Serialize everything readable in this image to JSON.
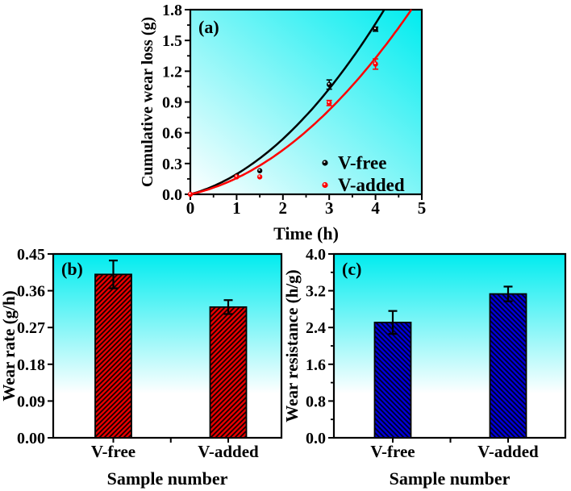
{
  "figure": {
    "description": "Wear test results figure with three panels"
  },
  "colors": {
    "background": "#ffffff",
    "gradient_top": "#00ecef",
    "gradient_bottom": "#ffffff",
    "axis": "#000000",
    "series_vfree": "#000000",
    "series_vadded": "#ff0000",
    "bar_red": "#e60000",
    "bar_red_hatch": "#140000",
    "bar_blue": "#0000d8",
    "bar_blue_hatch": "#000026",
    "error_bar": "#000000"
  },
  "chart_data": [
    {
      "id": "a",
      "type": "scatter",
      "panel_label": "(a)",
      "xlabel": "Time (h)",
      "ylabel": "Cumulative wear loss (g)",
      "xlim": [
        0,
        5
      ],
      "ylim": [
        0,
        1.8
      ],
      "xticks": {
        "major": [
          0,
          1,
          2,
          3,
          4,
          5
        ],
        "labels": [
          "0",
          "1",
          "2",
          "3",
          "4",
          "5"
        ],
        "minor_step": 0.5
      },
      "yticks": {
        "major": [
          0,
          0.3,
          0.6,
          0.9,
          1.2,
          1.5,
          1.8
        ],
        "labels": [
          "0.0",
          "0.3",
          "0.6",
          "0.9",
          "1.2",
          "1.5",
          "1.8"
        ],
        "minor_step": 0.15
      },
      "grid": false,
      "legend_position": "inside lower right",
      "series": [
        {
          "name": "V-free",
          "color": "#000000",
          "marker": "circle",
          "x": [
            1,
            1.5,
            3,
            4
          ],
          "y": [
            0.18,
            0.23,
            1.07,
            1.61
          ],
          "yerr": [
            0,
            0,
            0.045,
            0.02
          ],
          "fit_curve": {
            "type": "quadratic",
            "a": 0.073,
            "b": 0.124
          }
        },
        {
          "name": "V-added",
          "color": "#ff0000",
          "marker": "circle",
          "x": [
            0,
            1,
            1.5,
            3,
            4
          ],
          "y": [
            0,
            0.17,
            0.17,
            0.89,
            1.27
          ],
          "yerr": [
            0,
            0,
            0,
            0.025,
            0.05
          ],
          "fit_curve": {
            "type": "quadratic",
            "a": 0.058,
            "b": 0.1
          }
        }
      ]
    },
    {
      "id": "b",
      "type": "bar",
      "panel_label": "(b)",
      "xlabel": "Sample number",
      "ylabel": "Wear rate (g/h)",
      "ylim": [
        0,
        0.45
      ],
      "yticks": {
        "major": [
          0,
          0.09,
          0.18,
          0.27,
          0.36,
          0.45
        ],
        "labels": [
          "0.00",
          "0.09",
          "0.18",
          "0.27",
          "0.36",
          "0.45"
        ],
        "minor_step": 0
      },
      "categories": [
        "V-free",
        "V-added"
      ],
      "values": [
        0.4,
        0.32
      ],
      "errors": [
        0.034,
        0.017
      ],
      "bar_fill": "#e60000",
      "hatch_color": "#140000",
      "hatch_direction": "forward"
    },
    {
      "id": "c",
      "type": "bar",
      "panel_label": "(c)",
      "xlabel": "Sample number",
      "ylabel": "Wear resistance (h/g)",
      "ylim": [
        0,
        4.0
      ],
      "yticks": {
        "major": [
          0,
          0.8,
          1.6,
          2.4,
          3.2,
          4.0
        ],
        "labels": [
          "0.0",
          "0.8",
          "1.6",
          "2.4",
          "3.2",
          "4.0"
        ],
        "minor_step": 0.4
      },
      "categories": [
        "V-free",
        "V-added"
      ],
      "values": [
        2.51,
        3.13
      ],
      "errors": [
        0.25,
        0.16
      ],
      "bar_fill": "#0000d8",
      "hatch_color": "#000026",
      "hatch_direction": "backward"
    }
  ]
}
